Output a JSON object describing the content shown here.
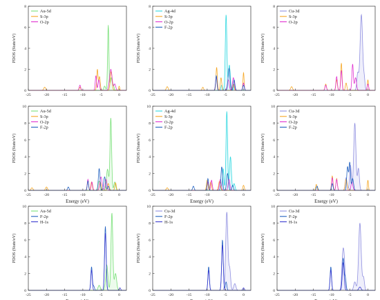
{
  "colors": {
    "Au-5d": "#78e078",
    "Ag-4d": "#30d8e0",
    "Cu-3d": "#9090e0",
    "S-3p": "#f5a623",
    "O-2p": "#e030d0",
    "F-2p": "#2060c0",
    "H-1s": "#3a3ad0"
  },
  "chart_data": [
    {
      "type": "line",
      "ylabel": "PDOS (State/eV)",
      "xlabel": "",
      "xlim": [
        -25,
        2
      ],
      "ylim": [
        0,
        8
      ],
      "yticks": [
        0,
        2,
        4,
        6,
        8
      ],
      "fill_series": "Au-5d",
      "legend": "top-left",
      "series": [
        {
          "name": "Au-5d",
          "peaks": [
            [
              -3.0,
              6.2,
              0.18
            ],
            [
              -2.2,
              1.2,
              0.25
            ],
            [
              -1.6,
              0.5,
              0.2
            ],
            [
              -4.0,
              0.4,
              0.25
            ]
          ]
        },
        {
          "name": "S-3p",
          "peaks": [
            [
              -20.5,
              0.3,
              0.25
            ],
            [
              -6.0,
              2.0,
              0.18
            ],
            [
              -5.4,
              1.3,
              0.2
            ],
            [
              -2.2,
              1.8,
              0.25
            ],
            [
              0,
              0.4,
              0.15
            ],
            [
              -10.8,
              0.3,
              0.2
            ]
          ]
        },
        {
          "name": "O-2p",
          "peaks": [
            [
              -6.4,
              1.4,
              0.18
            ],
            [
              -5.6,
              1.0,
              0.2
            ],
            [
              -2.3,
              2.0,
              0.35
            ],
            [
              -1.2,
              0.6,
              0.25
            ],
            [
              -10.8,
              0.5,
              0.2
            ]
          ]
        }
      ]
    },
    {
      "type": "line",
      "ylabel": "PDOS (State/eV)",
      "xlabel": "",
      "xlim": [
        -25,
        2
      ],
      "ylim": [
        0,
        8
      ],
      "yticks": [
        0,
        2,
        4,
        6,
        8
      ],
      "fill_series": "Ag-4d",
      "legend": "top-left",
      "series": [
        {
          "name": "Ag-4d",
          "peaks": [
            [
              -4.8,
              7.2,
              0.22
            ],
            [
              -3.9,
              2.4,
              0.25
            ],
            [
              -2.5,
              0.6,
              0.2
            ],
            [
              -6.0,
              0.5,
              0.2
            ]
          ]
        },
        {
          "name": "S-3p",
          "peaks": [
            [
              -21.0,
              0.35,
              0.25
            ],
            [
              -7.4,
              2.2,
              0.18
            ],
            [
              -6.2,
              1.2,
              0.2
            ],
            [
              -2.8,
              0.6,
              0.2
            ],
            [
              0,
              1.7,
              0.15
            ],
            [
              -11.2,
              0.3,
              0.2
            ]
          ]
        },
        {
          "name": "O-2p",
          "peaks": [
            [
              -7.5,
              1.3,
              0.2
            ],
            [
              -4.2,
              1.0,
              0.25
            ],
            [
              -2.8,
              1.2,
              0.25
            ],
            [
              0,
              0.7,
              0.2
            ]
          ]
        },
        {
          "name": "F-2p",
          "peaks": [
            [
              -7.5,
              1.4,
              0.18
            ],
            [
              -4.0,
              2.1,
              0.25
            ],
            [
              -2.6,
              1.0,
              0.22
            ],
            [
              0,
              0.5,
              0.2
            ]
          ]
        }
      ]
    },
    {
      "type": "line",
      "ylabel": "PDOS (State/eV)",
      "xlabel": "",
      "xlim": [
        -25,
        2
      ],
      "ylim": [
        0,
        8
      ],
      "yticks": [
        0,
        2,
        4,
        6,
        8
      ],
      "fill_series": "Cu-3d",
      "legend": "top-left",
      "series": [
        {
          "name": "Cu-3d",
          "peaks": [
            [
              -1.8,
              7.2,
              0.35
            ],
            [
              -2.8,
              1.6,
              0.25
            ],
            [
              -1.0,
              1.0,
              0.2
            ]
          ]
        },
        {
          "name": "S-3p",
          "peaks": [
            [
              -21.0,
              0.35,
              0.25
            ],
            [
              -7.3,
              2.6,
              0.18
            ],
            [
              -8.6,
              1.0,
              0.2
            ],
            [
              -6.0,
              0.7,
              0.2
            ],
            [
              0,
              1.0,
              0.15
            ],
            [
              -11.6,
              0.6,
              0.2
            ]
          ]
        },
        {
          "name": "O-2p",
          "peaks": [
            [
              -7.3,
              1.9,
              0.18
            ],
            [
              -8.6,
              1.3,
              0.2
            ],
            [
              -4.2,
              2.5,
              0.2
            ],
            [
              -3.4,
              1.2,
              0.25
            ],
            [
              -11.6,
              0.5,
              0.2
            ],
            [
              0,
              0.6,
              0.2
            ]
          ]
        }
      ]
    },
    {
      "type": "line",
      "ylabel": "PDOS (State/eV)",
      "xlabel": "Energy (eV)",
      "xlim": [
        -25,
        2
      ],
      "ylim": [
        0,
        10
      ],
      "yticks": [
        0,
        2,
        4,
        6,
        8,
        10
      ],
      "fill_series": "Au-5d",
      "legend": "top-left",
      "series": [
        {
          "name": "Au-5d",
          "peaks": [
            [
              -2.3,
              8.6,
              0.22
            ],
            [
              -3.2,
              2.5,
              0.3
            ],
            [
              -5.5,
              1.1,
              0.3
            ],
            [
              -1.2,
              1.0,
              0.25
            ]
          ]
        },
        {
          "name": "S-3p",
          "peaks": [
            [
              -24.0,
              0.3,
              0.25
            ],
            [
              -20.0,
              0.4,
              0.25
            ],
            [
              -8.6,
              1.2,
              0.2
            ],
            [
              -7.6,
              1.0,
              0.2
            ],
            [
              -5.2,
              1.0,
              0.25
            ],
            [
              -3.0,
              0.8,
              0.25
            ],
            [
              -1.0,
              0.9,
              0.2
            ]
          ]
        },
        {
          "name": "O-2p",
          "peaks": [
            [
              -8.6,
              1.3,
              0.18
            ],
            [
              -7.5,
              1.0,
              0.2
            ],
            [
              -5.0,
              1.6,
              0.3
            ],
            [
              -3.6,
              1.3,
              0.25
            ]
          ]
        },
        {
          "name": "F-2p",
          "peaks": [
            [
              -14.0,
              0.4,
              0.2
            ],
            [
              -8.6,
              1.1,
              0.18
            ],
            [
              -5.5,
              2.6,
              0.22
            ],
            [
              -4.0,
              1.6,
              0.25
            ],
            [
              -3.0,
              0.5,
              0.2
            ]
          ]
        }
      ]
    },
    {
      "type": "line",
      "ylabel": "PDOS (State/eV)",
      "xlabel": "Energy (eV)",
      "xlim": [
        -25,
        2
      ],
      "ylim": [
        0,
        10
      ],
      "yticks": [
        0,
        2,
        4,
        6,
        8,
        10
      ],
      "fill_series": "Ag-4d",
      "legend": "top-left",
      "series": [
        {
          "name": "Ag-4d",
          "peaks": [
            [
              -4.6,
              9.4,
              0.22
            ],
            [
              -3.6,
              4.0,
              0.25
            ],
            [
              -5.6,
              2.6,
              0.2
            ],
            [
              -2.6,
              0.8,
              0.25
            ]
          ]
        },
        {
          "name": "S-3p",
          "peaks": [
            [
              -21.0,
              0.3,
              0.25
            ],
            [
              -10.0,
              1.2,
              0.2
            ],
            [
              -9.0,
              1.0,
              0.2
            ],
            [
              -6.6,
              1.1,
              0.25
            ],
            [
              0,
              0.6,
              0.2
            ]
          ]
        },
        {
          "name": "O-2p",
          "peaks": [
            [
              -9.8,
              1.0,
              0.2
            ],
            [
              -8.8,
              1.2,
              0.2
            ],
            [
              -6.4,
              1.3,
              0.25
            ],
            [
              -4.0,
              1.3,
              0.25
            ]
          ]
        },
        {
          "name": "F-2p",
          "peaks": [
            [
              -13.8,
              0.5,
              0.2
            ],
            [
              -9.8,
              1.4,
              0.18
            ],
            [
              -6.0,
              2.8,
              0.22
            ],
            [
              -4.4,
              2.0,
              0.25
            ],
            [
              -3.0,
              0.6,
              0.2
            ]
          ]
        }
      ]
    },
    {
      "type": "line",
      "ylabel": "PDOS (State/eV)",
      "xlabel": "Energy (eV)",
      "xlim": [
        -25,
        2
      ],
      "ylim": [
        0,
        10
      ],
      "yticks": [
        0,
        2,
        4,
        6,
        8,
        10
      ],
      "fill_series": "Cu-3d",
      "legend": "top-left",
      "series": [
        {
          "name": "Cu-3d",
          "peaks": [
            [
              -3.6,
              8.0,
              0.3
            ],
            [
              -4.8,
              3.0,
              0.25
            ],
            [
              -2.6,
              2.6,
              0.25
            ],
            [
              -6.0,
              1.5,
              0.25
            ]
          ]
        },
        {
          "name": "S-3p",
          "peaks": [
            [
              -14.2,
              0.7,
              0.2
            ],
            [
              -9.8,
              1.7,
              0.2
            ],
            [
              -8.6,
              1.4,
              0.2
            ],
            [
              -6.0,
              1.3,
              0.25
            ],
            [
              0,
              1.2,
              0.15
            ]
          ]
        },
        {
          "name": "O-2p",
          "peaks": [
            [
              -9.8,
              1.5,
              0.18
            ],
            [
              -8.6,
              1.3,
              0.2
            ],
            [
              -4.4,
              1.0,
              0.25
            ]
          ]
        },
        {
          "name": "F-2p",
          "peaks": [
            [
              -14.0,
              0.5,
              0.2
            ],
            [
              -9.8,
              0.8,
              0.2
            ],
            [
              -5.6,
              2.8,
              0.22
            ],
            [
              -5.0,
              3.3,
              0.2
            ],
            [
              -4.2,
              1.4,
              0.25
            ]
          ]
        }
      ]
    },
    {
      "type": "line",
      "ylabel": "PDOS (State/eV)",
      "xlabel": "Energy (eV)",
      "xlim": [
        -25,
        2
      ],
      "ylim": [
        0,
        10
      ],
      "yticks": [
        0,
        2,
        4,
        6,
        8,
        10
      ],
      "fill_series": "Au-5d",
      "legend": "top-left",
      "series": [
        {
          "name": "Au-5d",
          "peaks": [
            [
              -2.0,
              9.2,
              0.25
            ],
            [
              -3.4,
              3.0,
              0.3
            ],
            [
              -1.0,
              2.0,
              0.3
            ],
            [
              -5.5,
              0.6,
              0.3
            ]
          ]
        },
        {
          "name": "F-2p",
          "peaks": [
            [
              -7.6,
              2.8,
              0.2
            ],
            [
              -3.8,
              7.6,
              0.22
            ],
            [
              -7.0,
              0.5,
              0.2
            ]
          ]
        },
        {
          "name": "H-1s",
          "peaks": [
            [
              -7.6,
              2.4,
              0.2
            ],
            [
              -3.8,
              6.8,
              0.22
            ],
            [
              0.2,
              0.3,
              0.2
            ]
          ]
        }
      ]
    },
    {
      "type": "line",
      "ylabel": "PDOS (State/eV)",
      "xlabel": "Energy (eV)",
      "xlim": [
        -25,
        2
      ],
      "ylim": [
        0,
        10
      ],
      "yticks": [
        0,
        2,
        4,
        6,
        8,
        10
      ],
      "fill_series": "Cu-3d",
      "legend": "top-left",
      "series": [
        {
          "name": "Cu-3d",
          "peaks": [
            [
              -4.6,
              9.3,
              0.3
            ],
            [
              -3.8,
              2.5,
              0.25
            ],
            [
              -2.4,
              0.8,
              0.3
            ]
          ]
        },
        {
          "name": "F-2p",
          "peaks": [
            [
              -9.6,
              2.8,
              0.2
            ],
            [
              -5.8,
              6.0,
              0.22
            ],
            [
              -4.8,
              1.0,
              0.2
            ]
          ]
        },
        {
          "name": "H-1s",
          "peaks": [
            [
              -9.6,
              2.4,
              0.2
            ],
            [
              -5.8,
              5.4,
              0.22
            ],
            [
              0,
              0.3,
              0.2
            ]
          ]
        }
      ]
    },
    {
      "type": "line",
      "ylabel": "PDOS (State/eV)",
      "xlabel": "Energy (eV)",
      "xlim": [
        -25,
        2
      ],
      "ylim": [
        0,
        10
      ],
      "yticks": [
        0,
        2,
        4,
        6,
        8,
        10
      ],
      "fill_series": "Cu-3d",
      "legend": "top-left",
      "series": [
        {
          "name": "Cu-3d",
          "peaks": [
            [
              -2.2,
              8.0,
              0.35
            ],
            [
              -6.6,
              4.0,
              0.3
            ],
            [
              -7.0,
              2.5,
              0.25
            ],
            [
              -1.2,
              1.5,
              0.25
            ],
            [
              -3.6,
              1.0,
              0.3
            ]
          ]
        },
        {
          "name": "F-2p",
          "peaks": [
            [
              -10.2,
              2.8,
              0.2
            ],
            [
              -6.8,
              3.8,
              0.25
            ],
            [
              -6.2,
              1.4,
              0.2
            ]
          ]
        },
        {
          "name": "H-1s",
          "peaks": [
            [
              -10.2,
              2.4,
              0.2
            ],
            [
              -6.8,
              3.3,
              0.25
            ],
            [
              -2.2,
              0.4,
              0.3
            ]
          ]
        }
      ]
    }
  ]
}
